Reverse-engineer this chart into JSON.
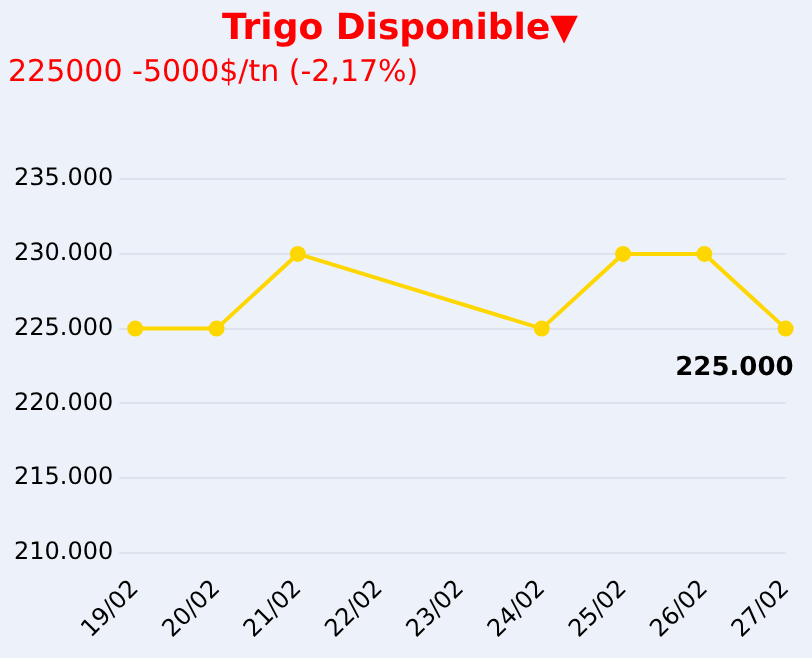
{
  "chart_data": {
    "type": "line",
    "title": "Trigo Disponible▼",
    "subtitle": "225000 -5000$/tn (-2,17%)",
    "categories": [
      "19/02",
      "20/02",
      "21/02",
      "22/02",
      "23/02",
      "24/02",
      "25/02",
      "26/02",
      "27/02"
    ],
    "series": [
      {
        "color": "#ffd700",
        "values": [
          225000,
          225000,
          230000,
          null,
          null,
          225000,
          230000,
          230000,
          225000
        ]
      }
    ],
    "ylim": [
      210000,
      235000
    ],
    "yticks": [
      {
        "value": 210000,
        "label": "210.000"
      },
      {
        "value": 215000,
        "label": "215.000"
      },
      {
        "value": 220000,
        "label": "220.000"
      },
      {
        "value": 225000,
        "label": "225.000"
      },
      {
        "value": 230000,
        "label": "230.000"
      },
      {
        "value": 235000,
        "label": "235.000"
      }
    ],
    "annotations": [
      {
        "text": "225.000",
        "x": "27/02",
        "y": 225000
      }
    ],
    "grid": "y",
    "legend": false,
    "marker": "circle",
    "line_style": "solid"
  }
}
